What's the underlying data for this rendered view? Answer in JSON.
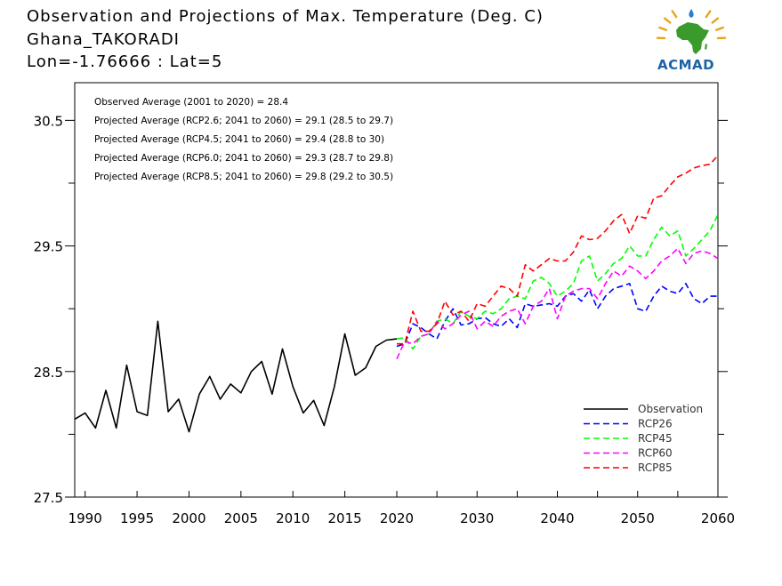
{
  "header": {
    "line1": "Observation and Projections of Max. Temperature (Deg. C)",
    "line2": "Ghana_TAKORADI",
    "line3": "Lon=-1.76666 : Lat=5"
  },
  "logo": {
    "text": "ACMAD",
    "color": "#1b63a8"
  },
  "chart_data": {
    "type": "line",
    "xlim": [
      1989,
      2060
    ],
    "ylim": [
      27.5,
      30.8
    ],
    "x_ticks": [
      1990,
      1995,
      2000,
      2005,
      2010,
      2015,
      2020,
      2030,
      2040,
      2050,
      2060
    ],
    "y_ticks": [
      27.5,
      28.5,
      29.5,
      30.5
    ],
    "annotations": [
      "Observed Average (2001 to 2020) = 28.4",
      "Projected Average (RCP2.6; 2041 to 2060) = 29.1 (28.5 to 29.7)",
      "Projected Average (RCP4.5; 2041 to 2060) = 29.4 (28.8 to 30)",
      "Projected Average (RCP6.0; 2041 to 2060) = 29.3 (28.7 to 29.8)",
      "Projected Average (RCP8.5; 2041 to 2060) = 29.8 (29.2 to 30.5)"
    ],
    "legend_position": "bottom-right",
    "series": [
      {
        "name": "Observation",
        "color": "#000000",
        "dash": false,
        "x": [
          1989,
          1990,
          1991,
          1992,
          1993,
          1994,
          1995,
          1996,
          1997,
          1998,
          1999,
          2000,
          2001,
          2002,
          2003,
          2004,
          2005,
          2006,
          2007,
          2008,
          2009,
          2010,
          2011,
          2012,
          2013,
          2014,
          2015,
          2016,
          2017,
          2018,
          2019,
          2020
        ],
        "y": [
          28.12,
          28.17,
          28.05,
          28.35,
          28.05,
          28.55,
          28.18,
          28.15,
          28.9,
          28.18,
          28.28,
          28.02,
          28.32,
          28.46,
          28.28,
          28.4,
          28.33,
          28.5,
          28.58,
          28.32,
          28.68,
          28.38,
          28.17,
          28.27,
          28.07,
          28.38,
          28.8,
          28.47,
          28.53,
          28.7,
          28.75,
          28.76
        ]
      },
      {
        "name": "RCP26",
        "color": "#0000ff",
        "dash": true,
        "x": [
          2020,
          2021,
          2022,
          2023,
          2024,
          2025,
          2026,
          2027,
          2028,
          2029,
          2030,
          2031,
          2032,
          2033,
          2034,
          2035,
          2036,
          2037,
          2038,
          2039,
          2040,
          2041,
          2042,
          2043,
          2044,
          2045,
          2046,
          2047,
          2048,
          2049,
          2050,
          2051,
          2052,
          2053,
          2054,
          2055,
          2056,
          2057,
          2058,
          2059,
          2060
        ],
        "y": [
          28.7,
          28.72,
          28.88,
          28.85,
          28.8,
          28.76,
          28.9,
          29.0,
          28.87,
          28.88,
          28.92,
          28.93,
          28.88,
          28.86,
          28.92,
          28.85,
          29.04,
          29.02,
          29.03,
          29.04,
          29.02,
          29.1,
          29.12,
          29.06,
          29.15,
          29.0,
          29.1,
          29.16,
          29.18,
          29.2,
          29.0,
          28.98,
          29.1,
          29.18,
          29.14,
          29.12,
          29.2,
          29.08,
          29.04,
          29.1,
          29.1
        ]
      },
      {
        "name": "RCP45",
        "color": "#00ff00",
        "dash": true,
        "x": [
          2020,
          2021,
          2022,
          2023,
          2024,
          2025,
          2026,
          2027,
          2028,
          2029,
          2030,
          2031,
          2032,
          2033,
          2034,
          2035,
          2036,
          2037,
          2038,
          2039,
          2040,
          2041,
          2042,
          2043,
          2044,
          2045,
          2046,
          2047,
          2048,
          2049,
          2050,
          2051,
          2052,
          2053,
          2054,
          2055,
          2056,
          2057,
          2058,
          2059,
          2060
        ],
        "y": [
          28.76,
          28.77,
          28.68,
          28.78,
          28.8,
          28.9,
          28.92,
          28.88,
          28.98,
          28.94,
          28.92,
          28.98,
          28.96,
          29.0,
          29.08,
          29.1,
          29.08,
          29.22,
          29.25,
          29.2,
          29.1,
          29.14,
          29.2,
          29.38,
          29.42,
          29.22,
          29.28,
          29.36,
          29.4,
          29.5,
          29.42,
          29.42,
          29.55,
          29.65,
          29.58,
          29.62,
          29.42,
          29.48,
          29.55,
          29.62,
          29.75
        ]
      },
      {
        "name": "RCP60",
        "color": "#ff00ff",
        "dash": true,
        "x": [
          2020,
          2021,
          2022,
          2023,
          2024,
          2025,
          2026,
          2027,
          2028,
          2029,
          2030,
          2031,
          2032,
          2033,
          2034,
          2035,
          2036,
          2037,
          2038,
          2039,
          2040,
          2041,
          2042,
          2043,
          2044,
          2045,
          2046,
          2047,
          2048,
          2049,
          2050,
          2051,
          2052,
          2053,
          2054,
          2055,
          2056,
          2057,
          2058,
          2059,
          2060
        ],
        "y": [
          28.6,
          28.74,
          28.72,
          28.78,
          28.8,
          28.9,
          28.84,
          28.88,
          28.95,
          28.98,
          28.84,
          28.9,
          28.86,
          28.94,
          28.98,
          29.0,
          28.88,
          29.02,
          29.06,
          29.16,
          28.92,
          29.1,
          29.14,
          29.16,
          29.16,
          29.08,
          29.2,
          29.3,
          29.26,
          29.34,
          29.3,
          29.24,
          29.3,
          29.38,
          29.42,
          29.48,
          29.36,
          29.44,
          29.46,
          29.44,
          29.4
        ]
      },
      {
        "name": "RCP85",
        "color": "#ff0000",
        "dash": true,
        "x": [
          2020,
          2021,
          2022,
          2023,
          2024,
          2025,
          2026,
          2027,
          2028,
          2029,
          2030,
          2031,
          2032,
          2033,
          2034,
          2035,
          2036,
          2037,
          2038,
          2039,
          2040,
          2041,
          2042,
          2043,
          2044,
          2045,
          2046,
          2047,
          2048,
          2049,
          2050,
          2051,
          2052,
          2053,
          2054,
          2055,
          2056,
          2057,
          2058,
          2059,
          2060
        ],
        "y": [
          28.72,
          28.72,
          28.98,
          28.82,
          28.82,
          28.88,
          29.06,
          28.95,
          28.98,
          28.9,
          29.04,
          29.02,
          29.1,
          29.18,
          29.16,
          29.1,
          29.35,
          29.3,
          29.35,
          29.4,
          29.38,
          29.38,
          29.45,
          29.58,
          29.55,
          29.56,
          29.62,
          29.7,
          29.75,
          29.6,
          29.74,
          29.72,
          29.88,
          29.9,
          29.98,
          30.05,
          30.08,
          30.12,
          30.14,
          30.15,
          30.22
        ]
      }
    ]
  }
}
